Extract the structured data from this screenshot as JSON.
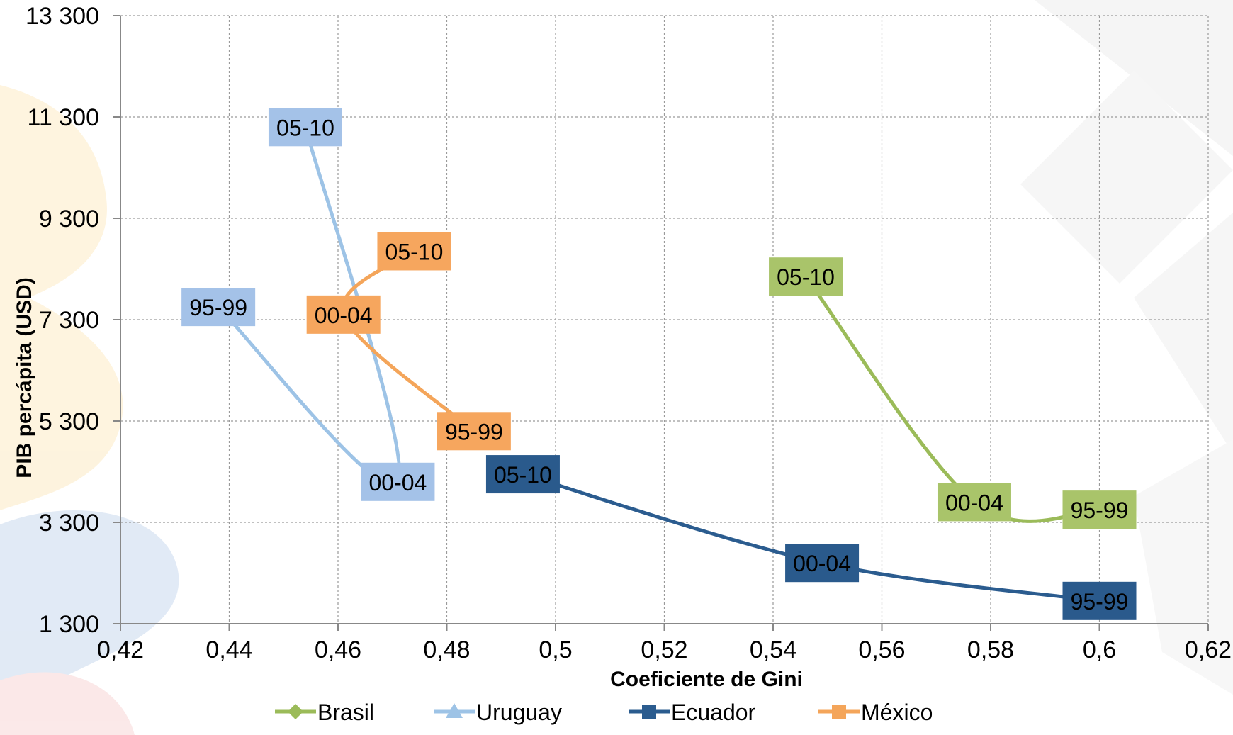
{
  "chart_data": {
    "type": "line",
    "xlabel": "Coeficiente de Gini",
    "ylabel": "PIB percápita (USD)",
    "xlim": [
      0.42,
      0.62
    ],
    "ylim": [
      1300,
      13300
    ],
    "x_ticks": [
      0.42,
      0.44,
      0.46,
      0.48,
      0.5,
      0.52,
      0.54,
      0.56,
      0.58,
      0.6,
      0.62
    ],
    "x_tick_labels": [
      "0,42",
      "0,44",
      "0,46",
      "0,48",
      "0,5",
      "0,52",
      "0,54",
      "0,56",
      "0,58",
      "0,6",
      "0,62"
    ],
    "y_ticks": [
      1300,
      3300,
      5300,
      7300,
      9300,
      11300,
      13300
    ],
    "y_tick_labels": [
      "1 300",
      "3 300",
      "5 300",
      "7 300",
      "9 300",
      "11 300",
      "13 300"
    ],
    "grid": true,
    "legend_position": "bottom",
    "series": [
      {
        "name": "Brasil",
        "color": "#9BBB59",
        "label_bg": "#A9C46A",
        "label_fg": "#000000",
        "marker": "diamond",
        "points": [
          {
            "x": 0.6,
            "y": 3550,
            "label": "95-99"
          },
          {
            "x": 0.577,
            "y": 3700,
            "label": "00-04"
          },
          {
            "x": 0.546,
            "y": 8150,
            "label": "05-10"
          }
        ]
      },
      {
        "name": "Uruguay",
        "color": "#9DC3E6",
        "label_bg": "#A4C2E8",
        "label_fg": "#000000",
        "marker": "triangle",
        "points": [
          {
            "x": 0.438,
            "y": 7550,
            "label": "95-99"
          },
          {
            "x": 0.471,
            "y": 4100,
            "label": "00-04"
          },
          {
            "x": 0.454,
            "y": 11100,
            "label": "05-10"
          }
        ]
      },
      {
        "name": "Ecuador",
        "color": "#2B5C8F",
        "label_bg": "#2A5A8C",
        "label_fg": "#000000",
        "marker": "square",
        "points": [
          {
            "x": 0.6,
            "y": 1750,
            "label": "95-99"
          },
          {
            "x": 0.549,
            "y": 2500,
            "label": "00-04"
          },
          {
            "x": 0.494,
            "y": 4250,
            "label": "05-10"
          }
        ]
      },
      {
        "name": "México",
        "color": "#F4A55A",
        "label_bg": "#F6A65E",
        "label_fg": "#000000",
        "marker": "square",
        "points": [
          {
            "x": 0.485,
            "y": 5100,
            "label": "95-99"
          },
          {
            "x": 0.461,
            "y": 7400,
            "label": "00-04"
          },
          {
            "x": 0.474,
            "y": 8650,
            "label": "05-10"
          }
        ]
      }
    ]
  }
}
